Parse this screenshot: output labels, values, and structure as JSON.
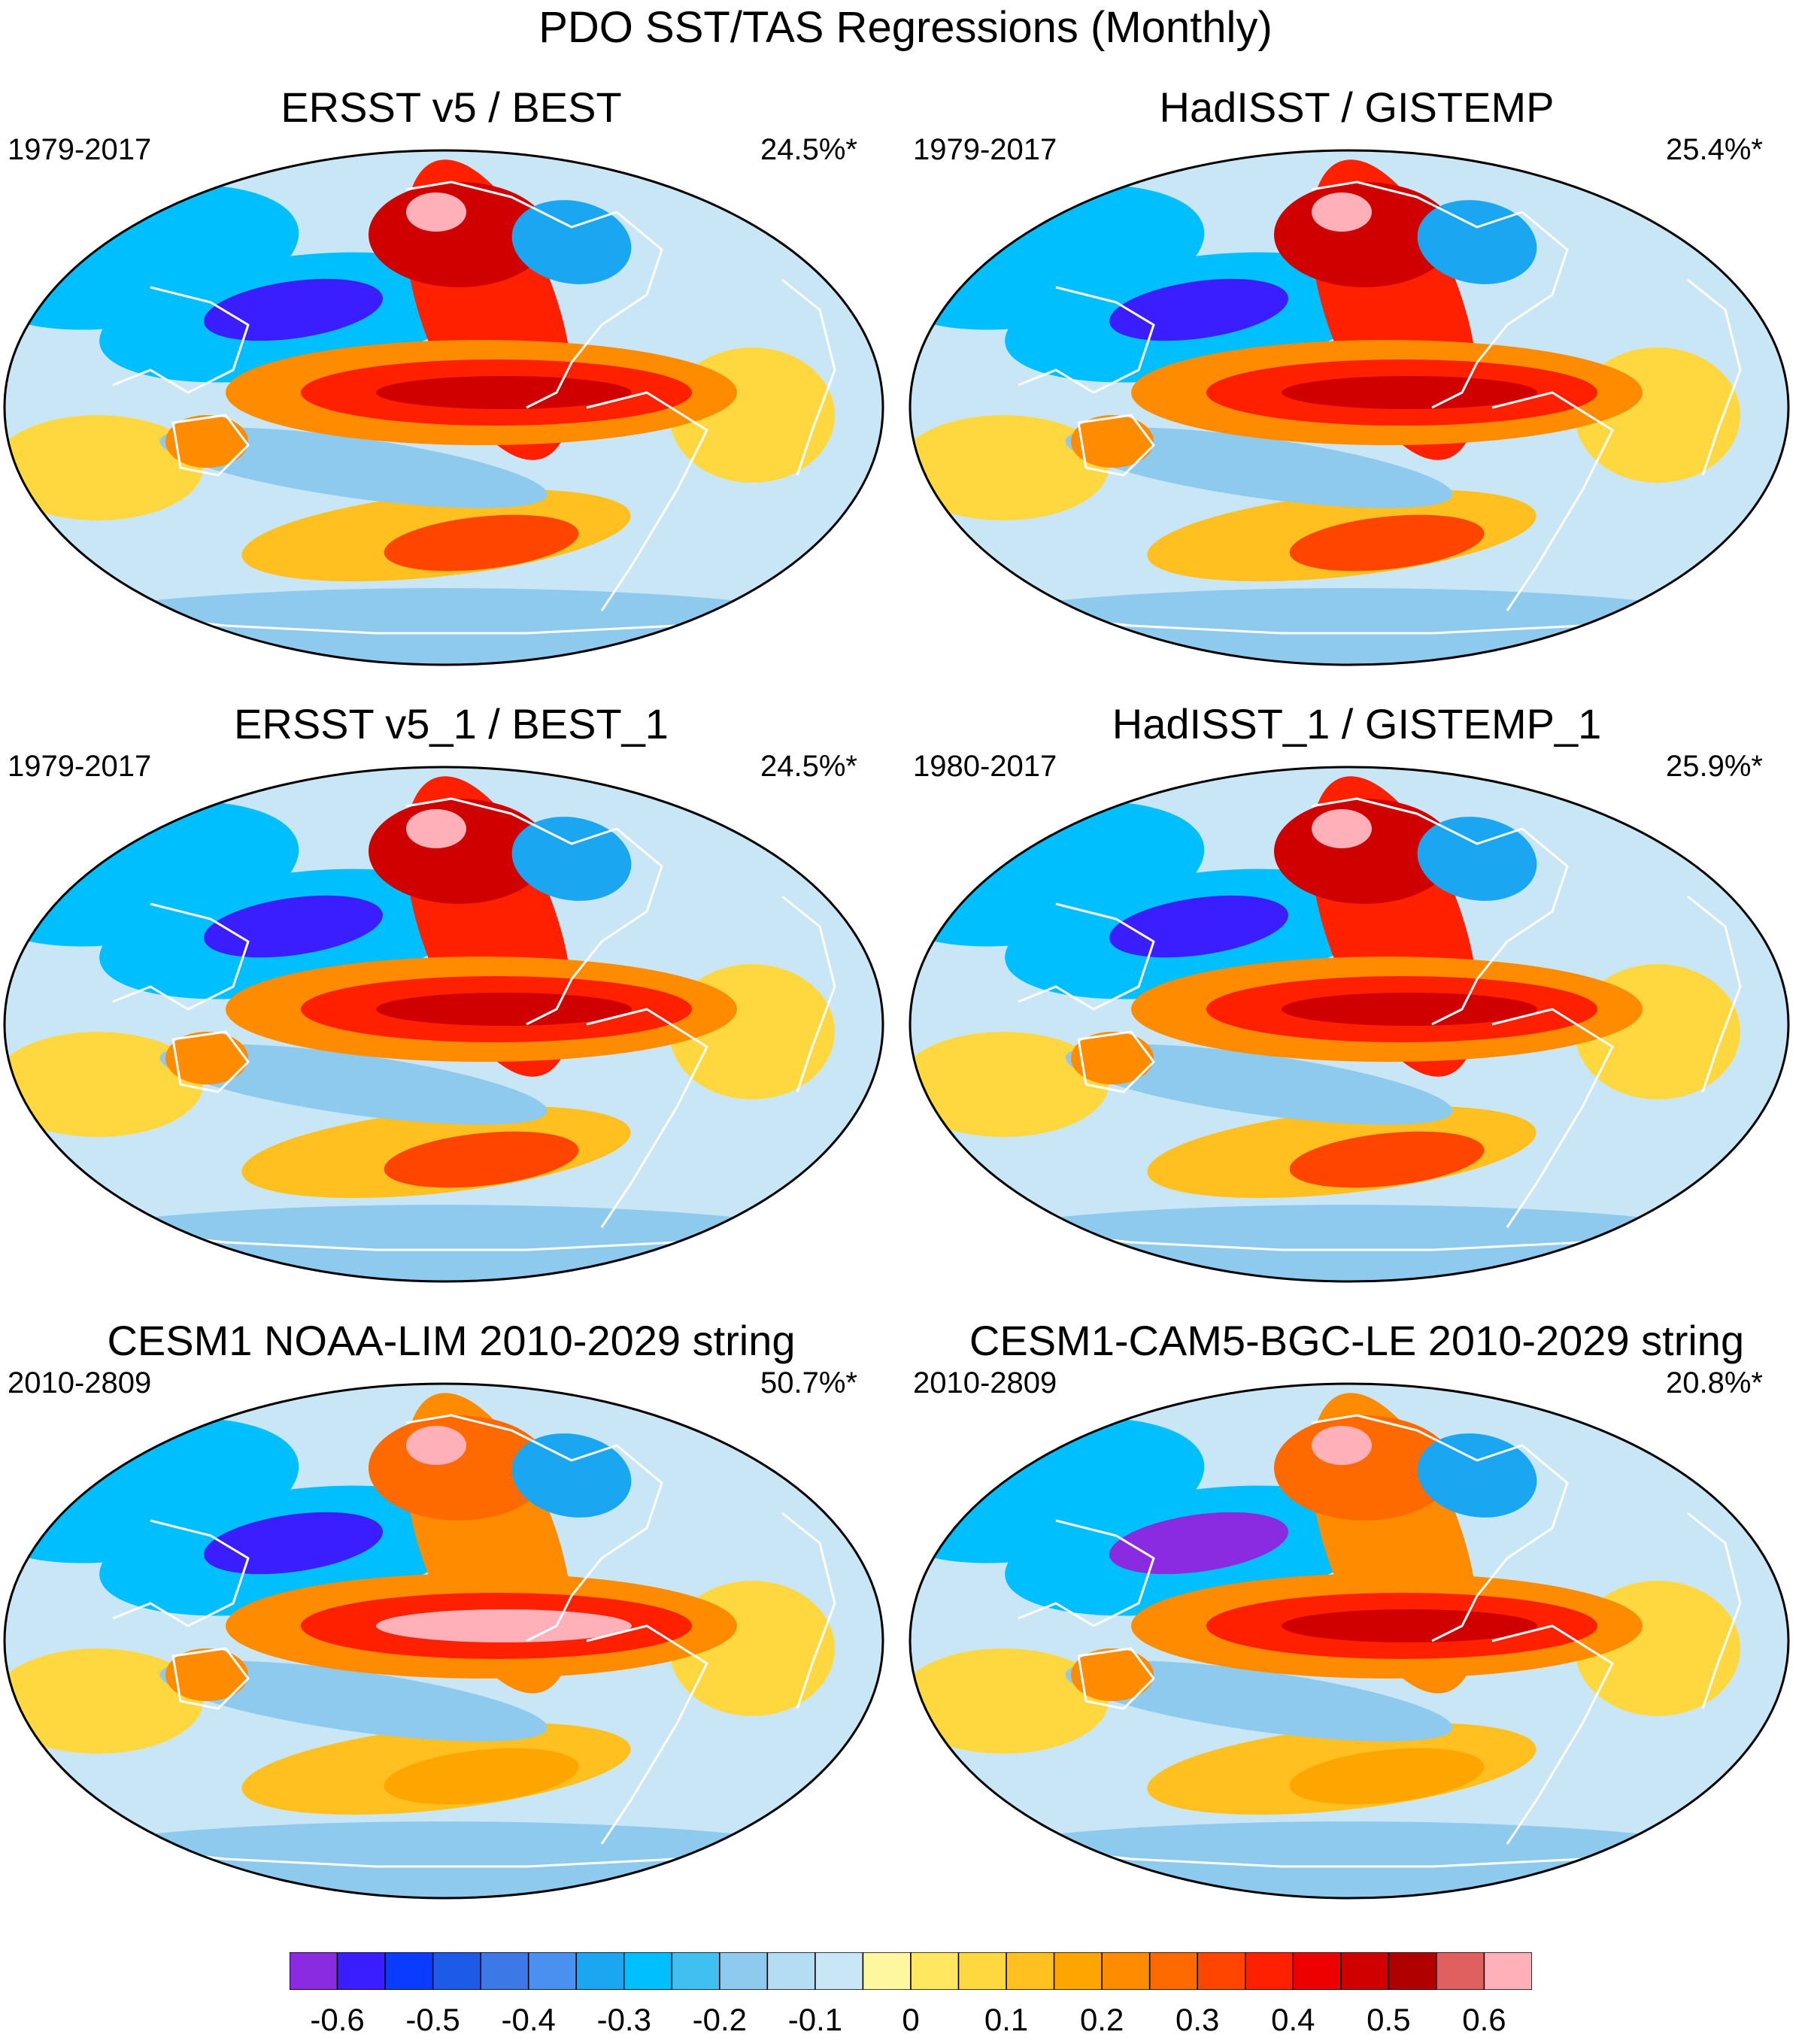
{
  "title": "PDO SST/TAS Regressions (Monthly)",
  "panels": [
    {
      "title": "ERSST v5 / BEST",
      "period": "1979-2017",
      "variance": "24.5%*",
      "warm_east": 0.45,
      "cold_npac": -0.6,
      "enso_tongue": 0.5,
      "alaska": 0.6
    },
    {
      "title": "HadISST / GISTEMP",
      "period": "1979-2017",
      "variance": "25.4%*",
      "warm_east": 0.45,
      "cold_npac": -0.55,
      "enso_tongue": 0.5,
      "alaska": 0.6
    },
    {
      "title": "ERSST v5_1 / BEST_1",
      "period": "1979-2017",
      "variance": "24.5%*",
      "warm_east": 0.45,
      "cold_npac": -0.6,
      "enso_tongue": 0.5,
      "alaska": 0.6
    },
    {
      "title": "HadISST_1 / GISTEMP_1",
      "period": "1980-2017",
      "variance": "25.9%*",
      "warm_east": 0.45,
      "cold_npac": -0.55,
      "enso_tongue": 0.5,
      "alaska": 0.6
    },
    {
      "title": "CESM1 NOAA-LIM 2010-2029 string",
      "period": "2010-2809",
      "variance": "50.7%*",
      "warm_east": 0.3,
      "cold_npac": -0.55,
      "enso_tongue": 0.65,
      "alaska": 0.6
    },
    {
      "title": "CESM1-CAM5-BGC-LE 2010-2029 string",
      "period": "2010-2809",
      "variance": "20.8%*",
      "warm_east": 0.3,
      "cold_npac": -0.65,
      "enso_tongue": 0.5,
      "alaska": 0.65
    }
  ],
  "colorbar": {
    "colors": [
      "#8a2be2",
      "#3a1eff",
      "#0a3cff",
      "#1e5ae8",
      "#3c78e6",
      "#4a90f0",
      "#1aa6f0",
      "#00bfff",
      "#40c0f0",
      "#8ec9ee",
      "#b4dcf2",
      "#c8e6f5",
      "#fff6a0",
      "#ffe860",
      "#ffd840",
      "#ffc020",
      "#ffa500",
      "#ff8c00",
      "#ff6a00",
      "#ff4500",
      "#ff2000",
      "#ee0000",
      "#d00000",
      "#b00000",
      "#e06060",
      "#ffb0b8"
    ],
    "tick_values": [
      "-0.6",
      "-0.5",
      "-0.4",
      "-0.3",
      "-0.2",
      "-0.1",
      "0",
      "0.1",
      "0.2",
      "0.3",
      "0.4",
      "0.5",
      "0.6"
    ],
    "tick_positions": [
      1,
      3,
      5,
      7,
      9,
      11,
      13,
      15,
      17,
      19,
      21,
      23,
      25
    ]
  }
}
